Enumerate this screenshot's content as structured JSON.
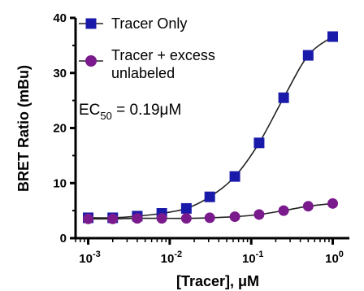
{
  "chart_data": {
    "type": "scatter",
    "x_scale": "log",
    "xlabel": "[Tracer], μM",
    "ylabel": "BRET Ratio (mBu)",
    "xlim": [
      0.0007,
      1.6
    ],
    "ylim": [
      0,
      40
    ],
    "y_ticks": [
      "0",
      "10",
      "20",
      "30",
      "40"
    ],
    "x_ticks": [
      {
        "base": "10",
        "exp": "-3",
        "value": 0.001
      },
      {
        "base": "10",
        "exp": "-2",
        "value": 0.01
      },
      {
        "base": "10",
        "exp": "-1",
        "value": 0.1
      },
      {
        "base": "10",
        "exp": "0",
        "value": 1
      }
    ],
    "legend_position": "top-left",
    "grid": false,
    "annotation": {
      "prefix": "EC",
      "subscript": "50",
      "value": " = 0.19",
      "unit": "μM"
    },
    "series": [
      {
        "name": "Tracer Only",
        "marker": "square",
        "color": "#1a1aaa",
        "x": [
          0.001,
          0.002,
          0.004,
          0.008,
          0.016,
          0.031,
          0.063,
          0.125,
          0.25,
          0.5,
          1.0
        ],
        "y": [
          3.7,
          3.7,
          4.0,
          4.5,
          5.4,
          7.5,
          11.2,
          17.3,
          25.5,
          33.2,
          36.6
        ]
      },
      {
        "name": "Tracer + excess unlabeled",
        "name_lines": [
          "Tracer + excess",
          "unlabeled"
        ],
        "marker": "circle",
        "color": "#7a1a8c",
        "x": [
          0.001,
          0.002,
          0.004,
          0.008,
          0.016,
          0.031,
          0.063,
          0.125,
          0.25,
          0.5,
          1.0
        ],
        "y": [
          3.5,
          3.5,
          3.6,
          3.6,
          3.6,
          3.7,
          3.9,
          4.3,
          5.0,
          5.8,
          6.3
        ]
      }
    ]
  }
}
